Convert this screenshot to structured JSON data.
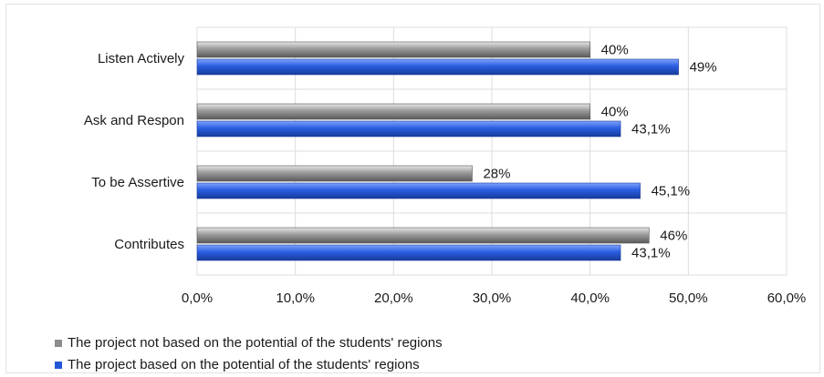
{
  "chart_data": {
    "type": "bar",
    "orientation": "horizontal",
    "categories": [
      "Listen Actively",
      "Ask and Respon",
      "To be Assertive",
      "Contributes"
    ],
    "series": [
      {
        "name": "The project not based on the potential of the students' regions",
        "values": [
          40,
          40,
          28,
          46
        ],
        "labels": [
          "40%",
          "40%",
          "28%",
          "46%"
        ],
        "color": "#8c8c8c"
      },
      {
        "name": "The project based on the potential of the students' regions",
        "values": [
          49,
          43.1,
          45.1,
          43.1
        ],
        "labels": [
          "49%",
          "43,1%",
          "45,1%",
          "43,1%"
        ],
        "color": "#2457d6"
      }
    ],
    "xlim": [
      0,
      60
    ],
    "xticks": [
      "0,0%",
      "10,0%",
      "20,0%",
      "30,0%",
      "40,0%",
      "50,0%",
      "60,0%"
    ],
    "grid": true,
    "legend_position": "bottom-left"
  }
}
